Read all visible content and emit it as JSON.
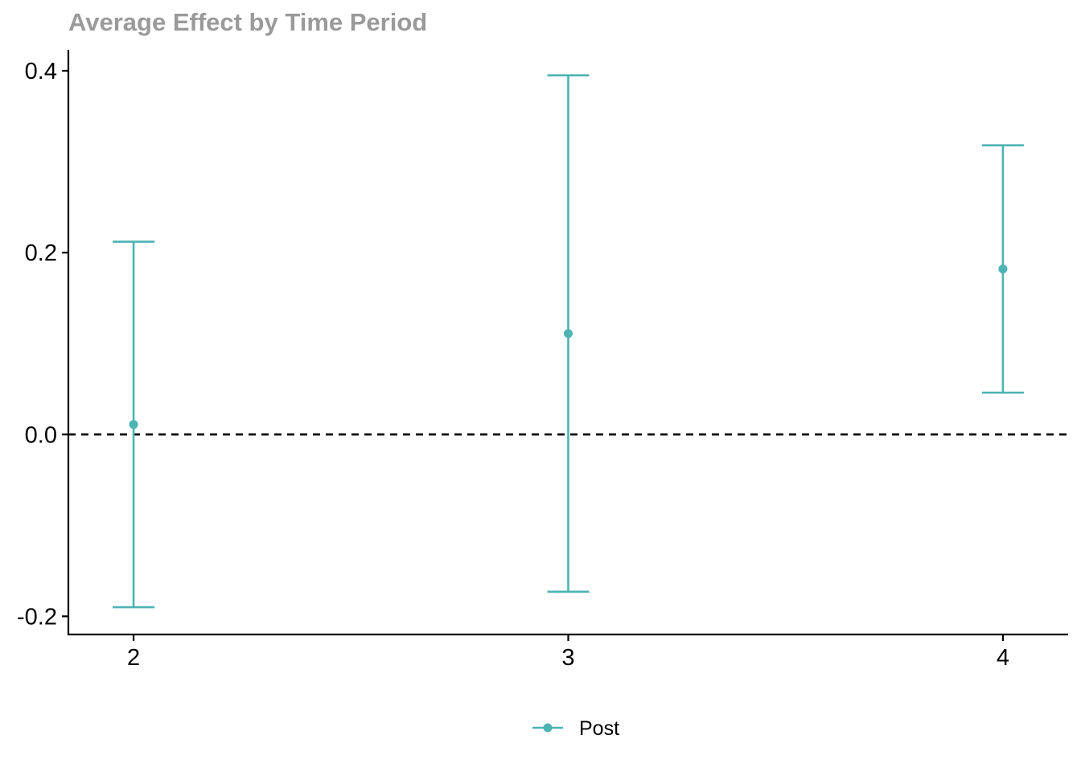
{
  "chart_data": {
    "type": "errorbar",
    "title": "Average Effect by Time Period",
    "xlabel": "",
    "ylabel": "",
    "x": [
      2,
      3,
      4
    ],
    "x_tick_labels": [
      "2",
      "3",
      "4"
    ],
    "xlim": [
      1.85,
      4.15
    ],
    "ylim": [
      -0.22,
      0.423
    ],
    "y_ticks": [
      -0.2,
      0.0,
      0.2,
      0.4
    ],
    "y_tick_labels": [
      "-0.2",
      "0.0",
      "0.2",
      "0.4"
    ],
    "reference_line": {
      "y": 0.0,
      "style": "dashed",
      "color": "#000000"
    },
    "grid": false,
    "legend_position": "bottom",
    "series": [
      {
        "name": "Post",
        "color": "#4db3b3",
        "points": [
          {
            "x": 2,
            "y": 0.011,
            "lower": -0.19,
            "upper": 0.212
          },
          {
            "x": 3,
            "y": 0.111,
            "lower": -0.173,
            "upper": 0.395
          },
          {
            "x": 4,
            "y": 0.182,
            "lower": 0.046,
            "upper": 0.318
          }
        ]
      }
    ]
  }
}
